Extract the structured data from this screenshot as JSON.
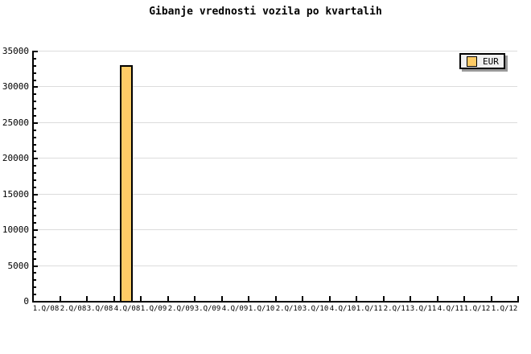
{
  "title": "Gibanje vrednosti vozila po kvartalih",
  "legend": {
    "items": [
      {
        "label": "EUR",
        "swatch_color": "#ffcc66"
      }
    ],
    "position": "top-right",
    "background": "#f0f0f0",
    "shadow_color": "#999999"
  },
  "chart_data": {
    "type": "bar",
    "title": "Gibanje vrednosti vozila po kvartalih",
    "categories": [
      "1.Q/08",
      "2.Q/08",
      "3.Q/08",
      "4.Q/08",
      "1.Q/09",
      "2.Q/09",
      "3.Q/09",
      "4.Q/09",
      "1.Q/10",
      "2.Q/10",
      "3.Q/10",
      "4.Q/10",
      "1.Q/11",
      "2.Q/11",
      "3.Q/11",
      "4.Q/11",
      "1.Q/12",
      "1.Q/12"
    ],
    "series": [
      {
        "name": "EUR",
        "color": "#ffcc66",
        "values": [
          null,
          null,
          null,
          33000,
          null,
          null,
          null,
          null,
          null,
          null,
          null,
          null,
          null,
          null,
          null,
          null,
          null,
          null
        ]
      }
    ],
    "xlabel": "",
    "ylabel": "",
    "ylim": [
      0,
      35000
    ],
    "ytick_major": 5000,
    "ytick_minor": 1000,
    "ytick_labels": [
      "0",
      "5000",
      "10000",
      "15000",
      "20000",
      "25000",
      "30000",
      "35000"
    ],
    "grid": "horizontal-major",
    "gridline_color": "#dcdcdc",
    "axis_color": "#000000",
    "legend_position": "top-right"
  }
}
